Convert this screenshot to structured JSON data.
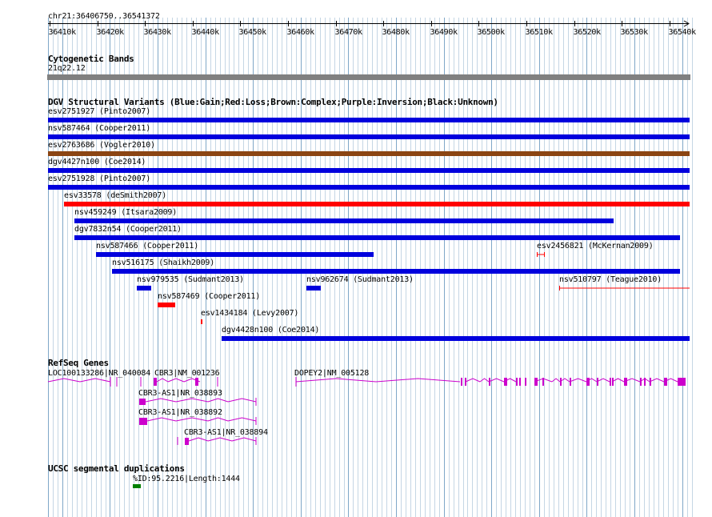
{
  "header": {
    "location": "chr21:36406750..36541372",
    "ruler_ticks": [
      "36410k",
      "36420k",
      "36430k",
      "36440k",
      "36450k",
      "36460k",
      "36470k",
      "36480k",
      "36490k",
      "36500k",
      "36510k",
      "36520k",
      "36530k",
      "36540k"
    ]
  },
  "cytoband": {
    "title": "Cytogenetic Bands",
    "band": "21q22.12"
  },
  "dgv": {
    "title": "DGV Structural Variants (Blue:Gain;Red:Loss;Brown:Complex;Purple:Inversion;Black:Unknown)",
    "colors": {
      "gain": "#0000dd",
      "loss": "#ff0000",
      "complex": "#8b4513",
      "inversion": "#800080",
      "unknown": "#000000"
    },
    "variants": [
      {
        "label": "esv2751927 (Pinto2007)",
        "type": "gain"
      },
      {
        "label": "nsv587464 (Cooper2011)",
        "type": "gain"
      },
      {
        "label": "esv2763686 (Vogler2010)",
        "type": "complex"
      },
      {
        "label": "dgv4427n100 (Coe2014)",
        "type": "gain"
      },
      {
        "label": "esv2751928 (Pinto2007)",
        "type": "gain"
      },
      {
        "label": "esv33578 (deSmith2007)",
        "type": "loss"
      },
      {
        "label": "nsv459249 (Itsara2009)",
        "type": "gain"
      },
      {
        "label": "dgv7832n54 (Cooper2011)",
        "type": "gain"
      },
      {
        "label": "nsv587466 (Cooper2011)",
        "type": "gain"
      },
      {
        "label": "esv2456821 (McKernan2009)",
        "type": "loss"
      },
      {
        "label": "nsv516175 (Shaikh2009)",
        "type": "gain"
      },
      {
        "label": "nsv979535 (Sudmant2013)",
        "type": "gain"
      },
      {
        "label": "nsv962674 (Sudmant2013)",
        "type": "gain"
      },
      {
        "label": "nsv510797 (Teague2010)",
        "type": "loss"
      },
      {
        "label": "nsv587469 (Cooper2011)",
        "type": "loss"
      },
      {
        "label": "esv1434184 (Levy2007)",
        "type": "loss"
      },
      {
        "label": "dgv4428n100 (Coe2014)",
        "type": "gain"
      }
    ]
  },
  "refseq": {
    "title": "RefSeq Genes",
    "color": "#cc00cc",
    "genes": [
      {
        "label": "LOC100133286|NR_040084"
      },
      {
        "label": "CBR3|NM_001236"
      },
      {
        "label": "DOPEY2|NM_005128"
      },
      {
        "label": "CBR3-AS1|NR_038893"
      },
      {
        "label": "CBR3-AS1|NR_038892"
      },
      {
        "label": "CBR3-AS1|NR_038894"
      }
    ]
  },
  "segdup": {
    "title": "UCSC segmental duplications",
    "color": "#008000",
    "items": [
      {
        "label": "%ID:95.2216|Length:1444"
      }
    ]
  }
}
